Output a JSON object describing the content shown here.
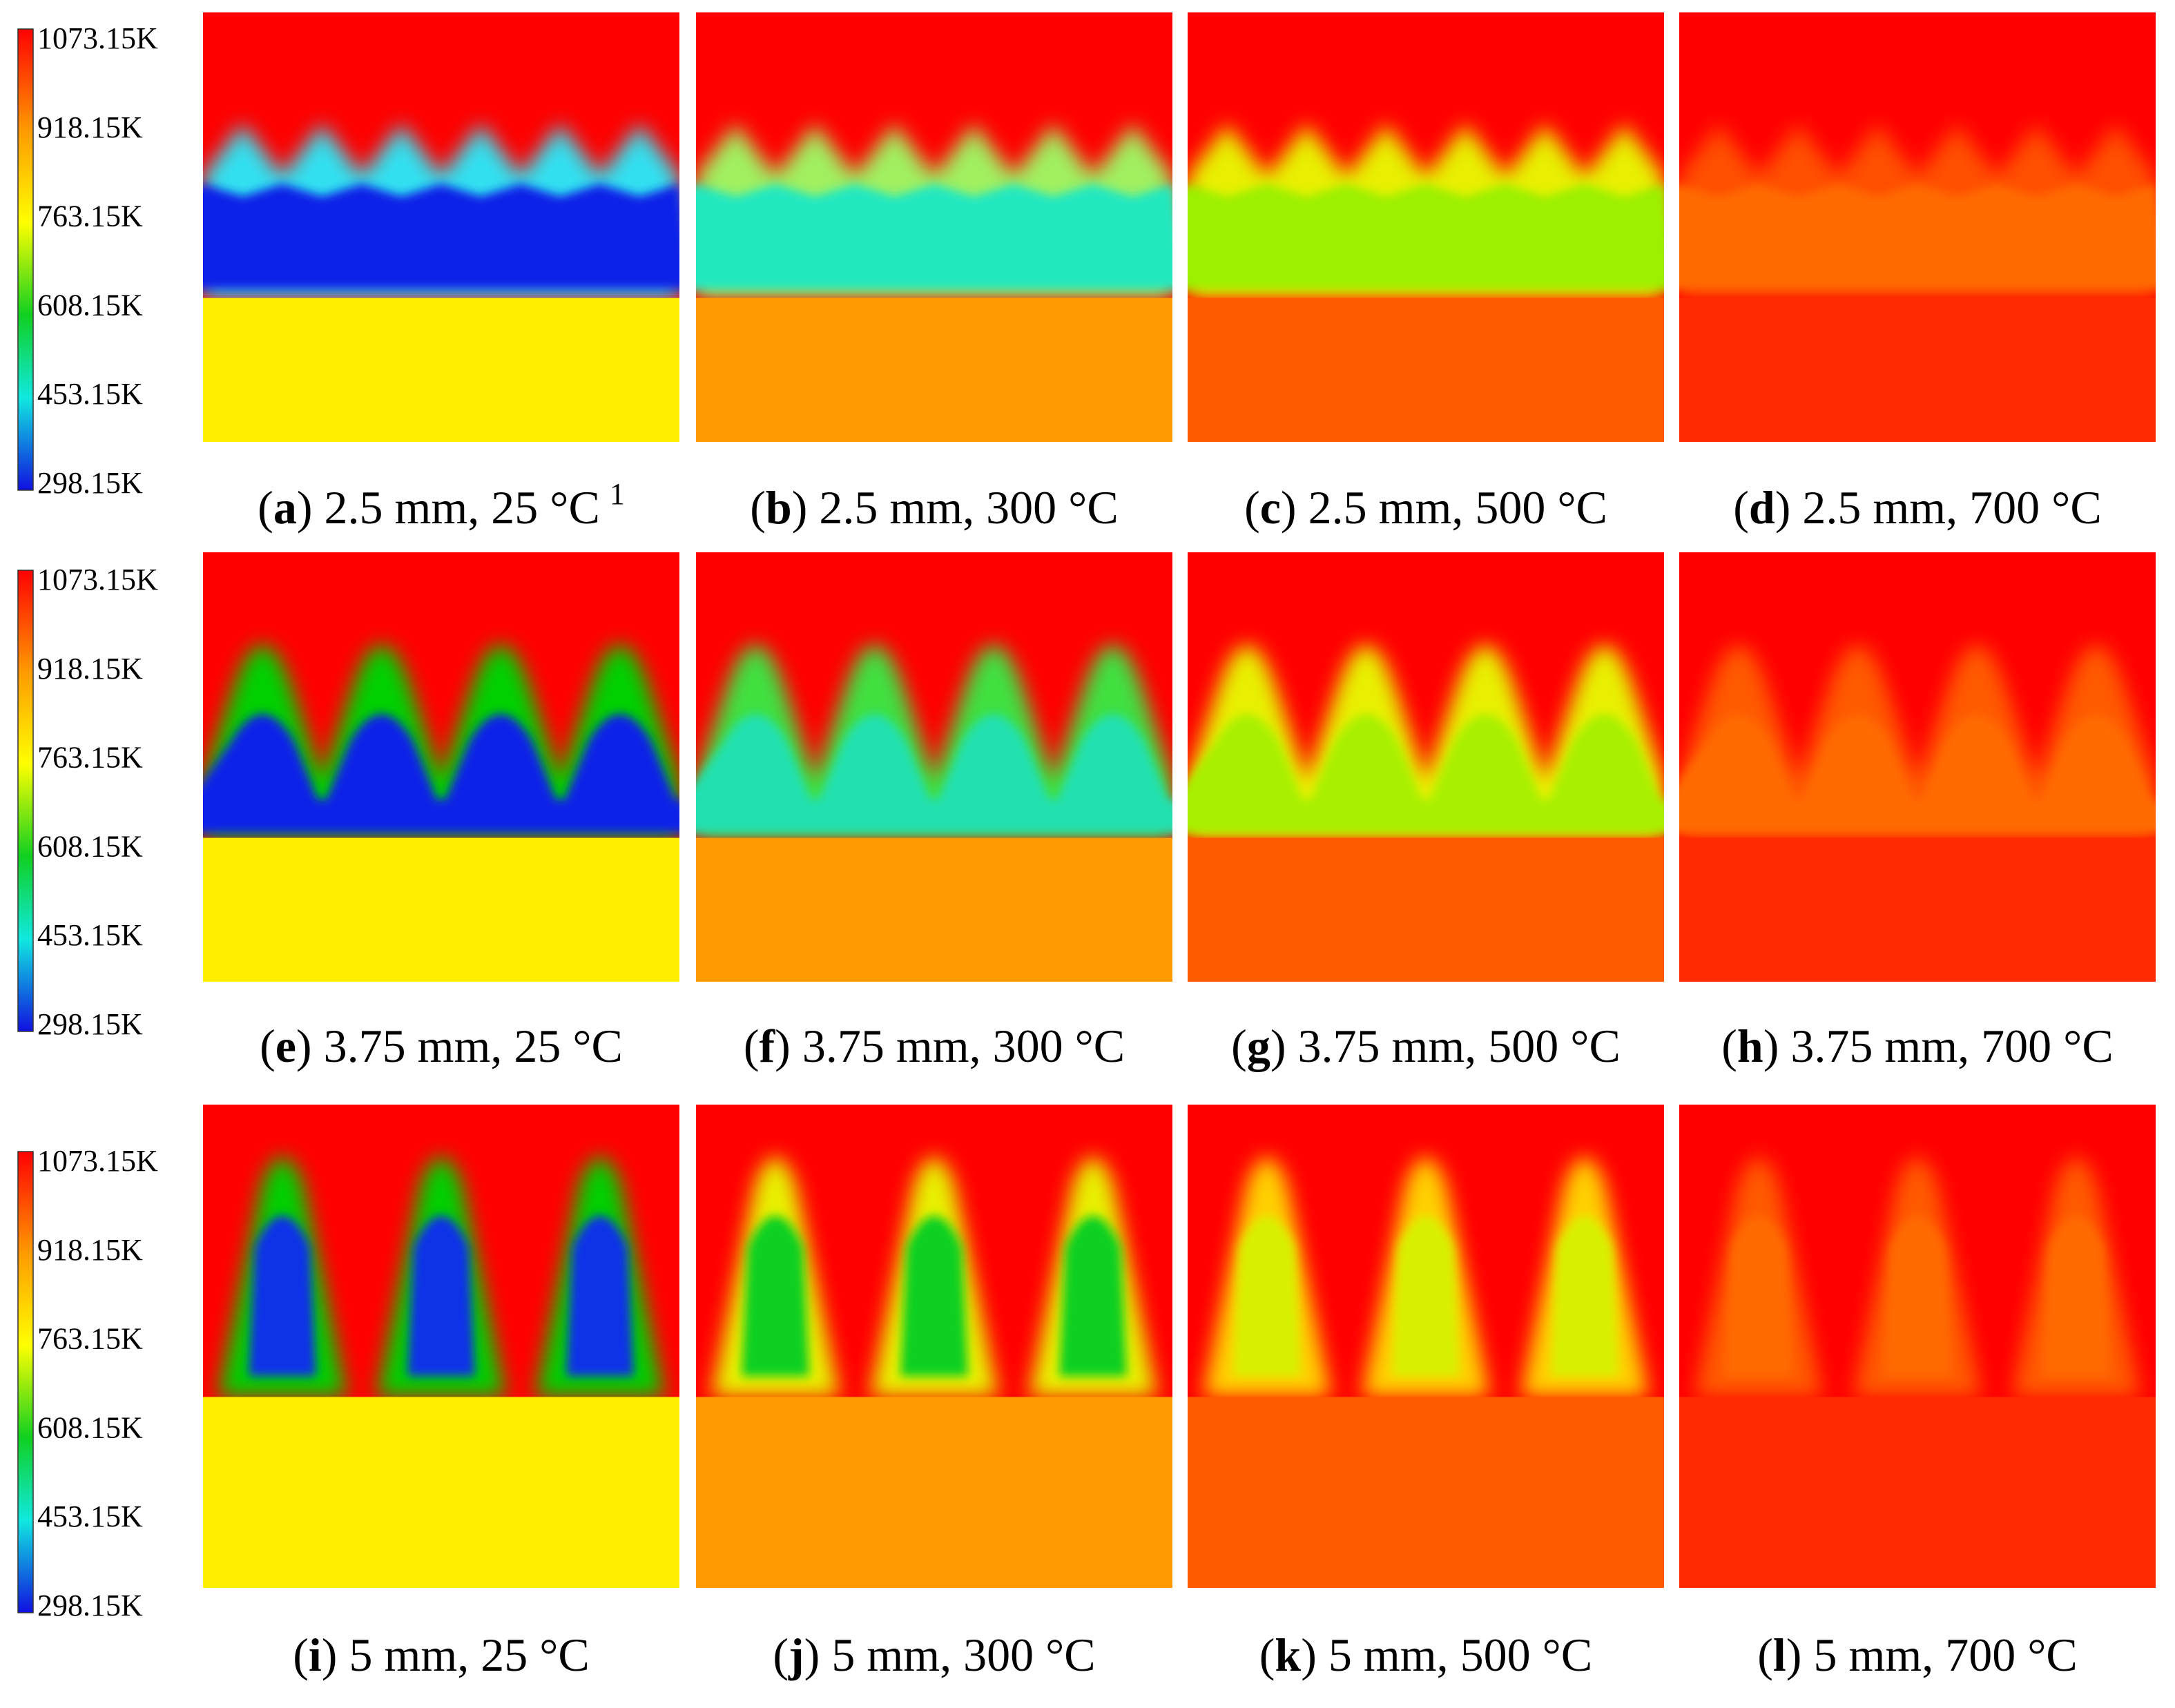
{
  "figure": {
    "colors": {
      "cold": "#1010e0",
      "cyan": "#10e8e0",
      "green": "#10d020",
      "yellow": "#ffff00",
      "orange": "#ff9a00",
      "red": "#ff0000"
    },
    "colorbar": {
      "ticks": [
        "1073.15K",
        "918.15K",
        "763.15K",
        "608.15K",
        "453.15K",
        "298.15K"
      ]
    },
    "rows": [
      {
        "thickness": "2.5 mm",
        "shape": "wavy",
        "panels": [
          {
            "letter": "a",
            "rest": " 2.5 mm, 25 °C",
            "superscript": "1",
            "top": "#ff0000",
            "core": "#0820e8",
            "fin": "#30e0f0",
            "base": "#ffee00"
          },
          {
            "letter": "b",
            "rest": " 2.5 mm, 300 °C",
            "superscript": "",
            "top": "#ff0000",
            "core": "#22e8c0",
            "fin": "#a0f060",
            "base": "#ff9a00"
          },
          {
            "letter": "c",
            "rest": " 2.5 mm, 500 °C",
            "superscript": "",
            "top": "#ff0000",
            "core": "#9cf000",
            "fin": "#e8f000",
            "base": "#ff5a00"
          },
          {
            "letter": "d",
            "rest": " 2.5 mm, 700 °C",
            "superscript": "",
            "top": "#ff0000",
            "core": "#ff6a00",
            "fin": "#ff5000",
            "base": "#ff2a00"
          }
        ]
      },
      {
        "thickness": "3.75 mm",
        "shape": "peaks",
        "panels": [
          {
            "letter": "e",
            "rest": " 3.75 mm, 25 °C",
            "superscript": "",
            "top": "#ff0000",
            "core": "#0820e8",
            "fin": "#00d000",
            "base": "#ffee00"
          },
          {
            "letter": "f",
            "rest": " 3.75 mm, 300 °C",
            "superscript": "",
            "top": "#ff0000",
            "core": "#22e0b0",
            "fin": "#40e040",
            "base": "#ff9a00"
          },
          {
            "letter": "g",
            "rest": " 3.75 mm, 500 °C",
            "superscript": "",
            "top": "#ff0000",
            "core": "#a8f000",
            "fin": "#e8f000",
            "base": "#ff5a00"
          },
          {
            "letter": "h",
            "rest": " 3.75 mm, 700 °C",
            "superscript": "",
            "top": "#ff0000",
            "core": "#ff6a00",
            "fin": "#ff5a00",
            "base": "#ff2a00"
          }
        ]
      },
      {
        "thickness": "5 mm",
        "shape": "triangles",
        "panels": [
          {
            "letter": "i",
            "rest": " 5 mm, 25 °C",
            "superscript": "",
            "top": "#ff0000",
            "core": "#0830e8",
            "fin": "#00d000",
            "base": "#ffee00"
          },
          {
            "letter": "j",
            "rest": " 5 mm, 300 °C",
            "superscript": "",
            "top": "#ff0000",
            "core": "#10d020",
            "fin": "#e8f000",
            "base": "#ff9a00"
          },
          {
            "letter": "k",
            "rest": " 5 mm, 500 °C",
            "superscript": "",
            "top": "#ff0000",
            "core": "#d8f000",
            "fin": "#ffd000",
            "base": "#ff5a00"
          },
          {
            "letter": "l",
            "rest": " 5 mm, 700 °C",
            "superscript": "",
            "top": "#ff0000",
            "core": "#ff6a00",
            "fin": "#ff5a00",
            "base": "#ff2a00"
          }
        ]
      }
    ]
  }
}
